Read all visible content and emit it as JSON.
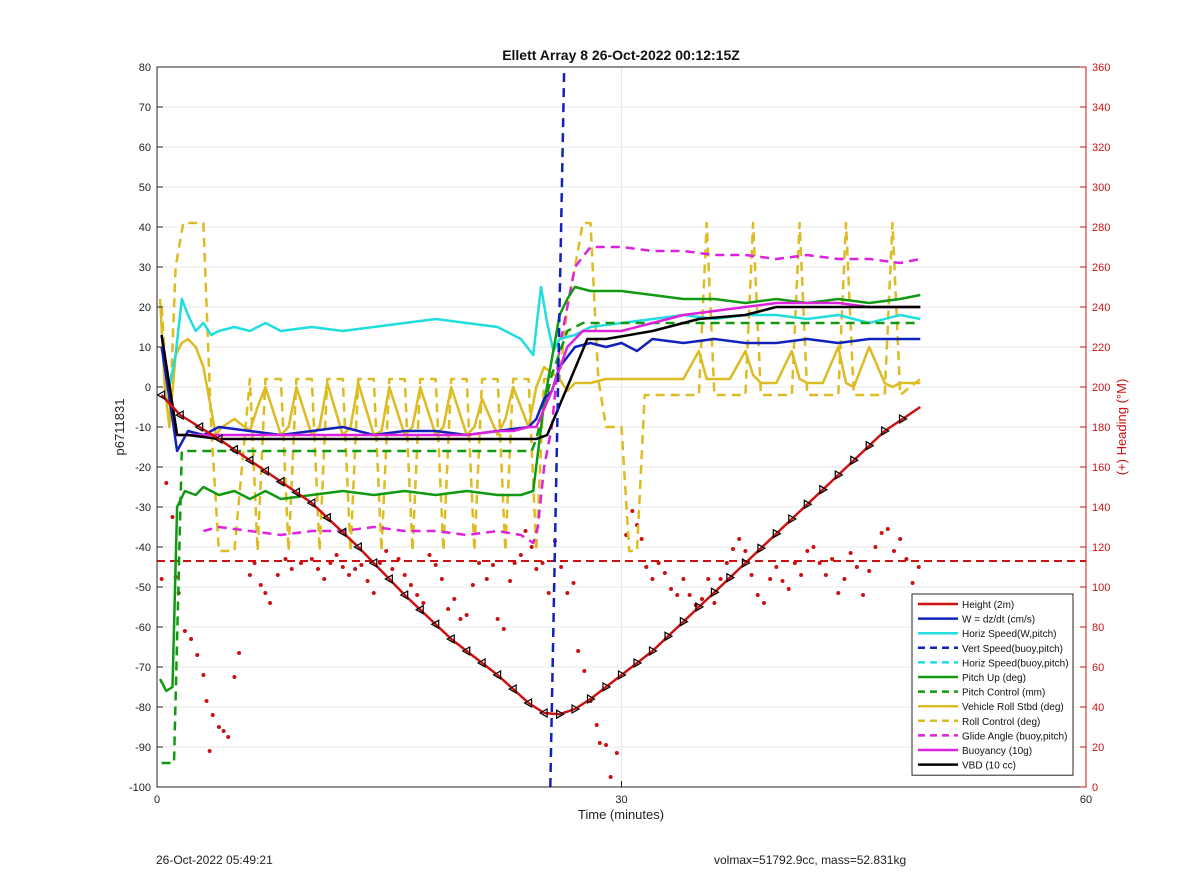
{
  "chart_data": {
    "type": "line",
    "title": "Ellett Array 8 26-Oct-2022 00:12:15Z",
    "xlabel": "Time (minutes)",
    "ylabel": "p6711831",
    "y2label": "(+) Heading (°M)",
    "xlim": [
      0,
      60
    ],
    "ylim": [
      -100,
      80
    ],
    "y2lim": [
      0,
      360
    ],
    "xticks": [
      "0",
      "30",
      "60"
    ],
    "yticks": [
      "-100",
      "-90",
      "-80",
      "-70",
      "-60",
      "-50",
      "-40",
      "-30",
      "-20",
      "-10",
      "0",
      "10",
      "20",
      "30",
      "40",
      "50",
      "60",
      "70",
      "80"
    ],
    "y2ticks": [
      "0",
      "20",
      "40",
      "60",
      "80",
      "100",
      "120",
      "140",
      "160",
      "180",
      "200",
      "220",
      "240",
      "260",
      "280",
      "300",
      "320",
      "340",
      "360"
    ],
    "grid": true,
    "legend_position": "bottom-right",
    "colors": {
      "red": "#cc1111",
      "blue": "#1122bb",
      "cyan": "#22dddd",
      "green": "#119911",
      "yellow": "#ddbb22",
      "magenta": "#dd22dd",
      "black": "#000000",
      "axis_right": "#cc1111"
    },
    "series": [
      {
        "name": "Height (2m)",
        "color": "#cc1111",
        "style": "solid",
        "marker": "triangle",
        "x": [
          0.3,
          1.5,
          4,
          7,
          10,
          13,
          16,
          19,
          22,
          24,
          25,
          26,
          27,
          28,
          30,
          32,
          35,
          38,
          41,
          44,
          47,
          49.3
        ],
        "y": [
          -2,
          -7,
          -13,
          -21,
          -29,
          -40,
          -52,
          -63,
          -72,
          -79,
          -81.5,
          -81.8,
          -80.5,
          -78,
          -72,
          -66,
          -55,
          -44,
          -33,
          -22,
          -11,
          -5
        ]
      },
      {
        "name": "W = dz/dt (cm/s)",
        "color": "#1122bb",
        "style": "solid",
        "x": [
          0.3,
          1.0,
          1.3,
          2,
          3,
          4,
          6,
          8,
          10,
          12,
          14,
          16,
          18,
          20,
          22,
          24,
          24.5,
          25,
          25.5,
          26,
          27,
          28,
          29,
          30,
          31,
          32,
          34,
          36,
          38,
          40,
          42,
          44,
          46,
          48,
          49.3
        ],
        "y": [
          10,
          -8,
          -16,
          -11,
          -12,
          -10,
          -11,
          -12,
          -11,
          -10,
          -12,
          -11,
          -11,
          -12,
          -11,
          -10,
          -8,
          -3,
          -1,
          5,
          10,
          11,
          10,
          11,
          9,
          12,
          11,
          12,
          11,
          11,
          12,
          11,
          12,
          12,
          12
        ]
      },
      {
        "name": "Horiz Speed(W,pitch)",
        "color": "#22dddd",
        "style": "solid",
        "x": [
          0.8,
          1.2,
          1.6,
          2,
          2.5,
          3,
          3.5,
          4,
          5,
          6,
          7,
          8,
          10,
          12,
          14,
          16,
          18,
          20,
          22,
          23.5,
          24.3,
          24.8,
          25.2,
          25.6,
          26,
          27,
          28,
          30,
          32,
          34,
          36,
          38,
          40,
          42,
          44,
          46,
          48,
          49.3
        ],
        "y": [
          0,
          8,
          22,
          18,
          14,
          16,
          13,
          14,
          15,
          14,
          16,
          14,
          15,
          14,
          15,
          16,
          17,
          16,
          15,
          12,
          8,
          25,
          16,
          9,
          12,
          13,
          15,
          16,
          17,
          18,
          17,
          18,
          18,
          17,
          18,
          16,
          18,
          17
        ]
      },
      {
        "name": "Vert Speed(buoy,pitch)",
        "color": "#1122bb",
        "style": "dashed",
        "x": [
          25.4,
          26.3
        ],
        "y": [
          -100,
          80
        ]
      },
      {
        "name": "Horiz Speed(buoy,pitch)",
        "color": "#22dddd",
        "style": "dashed",
        "x": [],
        "y": []
      },
      {
        "name": "Pitch Up (deg)",
        "color": "#119911",
        "style": "solid",
        "x": [
          0.2,
          0.6,
          1.0,
          1.3,
          1.8,
          2.5,
          3,
          4,
          5,
          6,
          7,
          8,
          10,
          12,
          14,
          16,
          18,
          20,
          22,
          23.5,
          24.3,
          25,
          26,
          26.5,
          27,
          28,
          30,
          32,
          34,
          36,
          38,
          40,
          42,
          44,
          46,
          48,
          49.3
        ],
        "y": [
          -73,
          -76,
          -75,
          -30,
          -26,
          -27,
          -25,
          -27,
          -26,
          -28,
          -26,
          -28,
          -27,
          -26,
          -27,
          -26,
          -27,
          -26,
          -27,
          -27,
          -26,
          -4,
          18,
          22,
          25,
          24,
          24,
          23,
          22,
          22,
          21,
          22,
          21,
          22,
          21,
          22,
          23
        ]
      },
      {
        "name": "Pitch Control (mm)",
        "color": "#119911",
        "style": "dashed",
        "x": [
          0.3,
          1.1,
          1.6,
          24.2,
          24.5,
          25.5,
          26.5,
          27.5,
          49.3
        ],
        "y": [
          -94,
          -94,
          -16,
          -16,
          -13,
          3,
          14,
          16,
          16
        ]
      },
      {
        "name": "Vehicle Roll Stbd (deg)",
        "color": "#ddbb22",
        "style": "solid",
        "x": [
          0.2,
          0.5,
          0.8,
          1.2,
          1.6,
          2,
          2.5,
          3,
          3.8,
          4.2,
          5,
          6,
          6.5,
          7,
          8,
          8.5,
          9,
          10,
          10.5,
          11,
          12,
          12.5,
          13,
          14,
          14.5,
          15,
          16,
          16.5,
          17,
          18,
          18.5,
          19,
          20,
          20.5,
          21,
          22,
          22.5,
          23,
          24,
          24.5,
          25,
          26,
          26.5,
          27,
          28,
          29,
          30,
          32,
          34,
          35,
          35.5,
          36,
          37,
          38,
          38.5,
          39,
          40,
          41,
          41.5,
          42,
          43,
          44,
          44.5,
          45,
          46,
          47,
          47.5,
          48,
          49.3
        ],
        "y": [
          22,
          0,
          -10,
          8,
          11,
          12,
          10,
          5,
          -12,
          -10,
          -8,
          -11,
          -5,
          0,
          -12,
          -10,
          0,
          -12,
          -10,
          1,
          -12,
          -10,
          1,
          -12,
          -11,
          0,
          -12,
          -10,
          0,
          -12,
          -10,
          0,
          -12,
          -10,
          -3,
          -12,
          -8,
          0,
          -10,
          0,
          5,
          2,
          -1,
          1,
          1,
          2,
          2,
          2,
          2,
          9,
          2,
          2,
          2,
          9,
          3,
          1,
          1,
          9,
          2,
          1,
          1,
          10,
          1,
          0,
          10,
          1,
          0,
          1,
          1
        ]
      },
      {
        "name": "Roll Control (deg)",
        "color": "#ddbb22",
        "style": "dashed",
        "x": [
          0.3,
          0.8,
          1.2,
          1.7,
          2,
          2.5,
          3,
          3.5,
          4,
          5,
          6,
          6.5,
          7,
          8,
          8.5,
          9,
          10,
          10.5,
          11,
          12,
          12.5,
          13,
          14,
          14.5,
          15,
          16,
          16.5,
          17,
          18,
          18.5,
          19,
          20,
          20.5,
          21,
          22,
          22.5,
          23,
          24,
          24.5,
          25,
          26,
          26.5,
          27,
          27.5,
          28,
          28.5,
          29,
          30,
          30.5,
          31,
          31.5,
          35,
          35.5,
          36,
          37,
          38,
          38.5,
          39,
          40,
          41,
          41.5,
          42,
          43,
          44,
          44.5,
          45,
          46,
          47,
          47.5,
          48,
          49.3
        ],
        "y": [
          20,
          -10,
          30,
          41,
          41,
          41,
          41,
          -10,
          -41,
          -41,
          2,
          -41,
          2,
          2,
          -41,
          2,
          2,
          -41,
          2,
          2,
          -41,
          2,
          2,
          -41,
          2,
          2,
          -41,
          2,
          2,
          -41,
          2,
          2,
          -41,
          2,
          2,
          -41,
          2,
          2,
          -41,
          2,
          2,
          20,
          30,
          41,
          41,
          2,
          -10,
          -10,
          -41,
          -41,
          -2,
          -2,
          41,
          -2,
          -2,
          -2,
          41,
          -2,
          -2,
          -2,
          41,
          -2,
          -2,
          -2,
          41,
          -2,
          -2,
          -2,
          41,
          -2,
          2
        ]
      },
      {
        "name": "Glide Angle (buoy,pitch)",
        "color": "#dd22dd",
        "style": "dashed",
        "x": [
          3,
          4,
          6,
          8,
          10,
          12,
          14,
          16,
          18,
          20,
          22,
          23.5,
          24.3,
          24.6,
          25,
          25.5,
          26,
          27,
          28,
          30,
          32,
          34,
          36,
          38,
          40,
          42,
          44,
          46,
          48,
          49.3
        ],
        "y": [
          -36,
          -35,
          -36,
          -37,
          -36,
          -36,
          -35,
          -36,
          -36,
          -37,
          -36,
          -37,
          -39,
          -35,
          -20,
          -10,
          10,
          30,
          35,
          35,
          34,
          34,
          33,
          33,
          32,
          33,
          32,
          32,
          31,
          32
        ]
      },
      {
        "name": "Buoyancy (10g)",
        "color": "#dd22dd",
        "style": "solid",
        "x": [
          0.3,
          1.3,
          2,
          4,
          8,
          12,
          16,
          20,
          22,
          23,
          24,
          24.5,
          25.5,
          26.5,
          27.5,
          30,
          32,
          34,
          36,
          38,
          40,
          42,
          44,
          46,
          48,
          49.3
        ],
        "y": [
          13,
          -12,
          -12,
          -12,
          -12,
          -12,
          -12,
          -12,
          -11,
          -11,
          -10,
          -10,
          -1,
          10,
          14,
          14,
          16,
          18,
          19,
          20,
          21,
          21,
          21,
          20,
          20,
          20
        ]
      },
      {
        "name": "VBD (10 cc)",
        "color": "#000000",
        "style": "solid",
        "x": [
          0.3,
          1.3,
          2,
          4,
          8,
          12,
          16,
          20,
          24.5,
          25.2,
          27.8,
          29,
          32,
          35,
          38,
          40,
          43,
          46,
          49.3
        ],
        "y": [
          13,
          -12,
          -12,
          -13,
          -13,
          -13,
          -13,
          -13,
          -13,
          -12,
          12,
          12,
          14,
          17,
          18,
          20,
          20,
          20,
          20
        ]
      }
    ],
    "heading_points": [
      [
        0.3,
        104
      ],
      [
        0.6,
        152
      ],
      [
        1,
        135
      ],
      [
        1.2,
        105
      ],
      [
        1.4,
        97
      ],
      [
        1.8,
        78
      ],
      [
        2.2,
        74
      ],
      [
        2.6,
        66
      ],
      [
        3,
        56
      ],
      [
        3.2,
        43
      ],
      [
        3.4,
        18
      ],
      [
        3.6,
        36
      ],
      [
        4,
        30
      ],
      [
        4.3,
        28
      ],
      [
        4.6,
        25
      ],
      [
        5,
        55
      ],
      [
        5.3,
        67
      ],
      [
        6,
        106
      ],
      [
        6.3,
        112
      ],
      [
        6.7,
        101
      ],
      [
        7,
        97
      ],
      [
        7.3,
        92
      ],
      [
        7.8,
        106
      ],
      [
        8.3,
        114
      ],
      [
        8.7,
        109
      ],
      [
        9.3,
        112
      ],
      [
        10,
        114
      ],
      [
        10.4,
        109
      ],
      [
        10.8,
        104
      ],
      [
        11.2,
        112
      ],
      [
        11.6,
        116
      ],
      [
        12,
        110
      ],
      [
        12.4,
        106
      ],
      [
        12.8,
        109
      ],
      [
        13.2,
        111
      ],
      [
        13.6,
        103
      ],
      [
        14,
        97
      ],
      [
        14.4,
        112
      ],
      [
        14.8,
        118
      ],
      [
        15.2,
        109
      ],
      [
        15.6,
        114
      ],
      [
        16,
        106
      ],
      [
        16.4,
        101
      ],
      [
        16.8,
        96
      ],
      [
        17.2,
        92
      ],
      [
        17.6,
        116
      ],
      [
        18,
        111
      ],
      [
        18.4,
        104
      ],
      [
        18.8,
        89
      ],
      [
        19.2,
        94
      ],
      [
        19.6,
        84
      ],
      [
        20,
        86
      ],
      [
        20.4,
        101
      ],
      [
        20.8,
        112
      ],
      [
        21.3,
        104
      ],
      [
        21.7,
        111
      ],
      [
        22,
        84
      ],
      [
        22.4,
        79
      ],
      [
        22.8,
        103
      ],
      [
        23.1,
        112
      ],
      [
        23.5,
        116
      ],
      [
        23.8,
        128
      ],
      [
        24.2,
        120
      ],
      [
        24.5,
        109
      ],
      [
        24.9,
        112
      ],
      [
        25.3,
        97
      ],
      [
        25.7,
        123
      ],
      [
        26.1,
        110
      ],
      [
        26.5,
        97
      ],
      [
        26.9,
        102
      ],
      [
        27.2,
        68
      ],
      [
        27.6,
        58
      ],
      [
        28,
        43
      ],
      [
        28.4,
        31
      ],
      [
        28.6,
        22
      ],
      [
        29,
        21
      ],
      [
        29.3,
        5
      ],
      [
        29.7,
        17
      ],
      [
        30.3,
        126
      ],
      [
        30.7,
        138
      ],
      [
        31,
        131
      ],
      [
        31.3,
        124
      ],
      [
        31.6,
        110
      ],
      [
        32,
        104
      ],
      [
        32.4,
        112
      ],
      [
        32.8,
        107
      ],
      [
        33.2,
        99
      ],
      [
        33.6,
        96
      ],
      [
        34,
        104
      ],
      [
        34.4,
        96
      ],
      [
        34.8,
        91
      ],
      [
        35.2,
        94
      ],
      [
        35.6,
        104
      ],
      [
        36,
        92
      ],
      [
        36.4,
        104
      ],
      [
        36.8,
        112
      ],
      [
        37.2,
        119
      ],
      [
        37.6,
        124
      ],
      [
        38,
        118
      ],
      [
        38.4,
        106
      ],
      [
        38.8,
        96
      ],
      [
        39.2,
        92
      ],
      [
        39.6,
        104
      ],
      [
        40,
        110
      ],
      [
        40.4,
        103
      ],
      [
        40.8,
        99
      ],
      [
        41.2,
        112
      ],
      [
        41.6,
        106
      ],
      [
        42,
        118
      ],
      [
        42.4,
        120
      ],
      [
        42.8,
        112
      ],
      [
        43.2,
        106
      ],
      [
        43.6,
        114
      ],
      [
        44,
        97
      ],
      [
        44.4,
        104
      ],
      [
        44.8,
        117
      ],
      [
        45.2,
        110
      ],
      [
        45.6,
        96
      ],
      [
        46,
        108
      ],
      [
        46.4,
        120
      ],
      [
        46.8,
        127
      ],
      [
        47.2,
        129
      ],
      [
        47.6,
        118
      ],
      [
        48,
        124
      ],
      [
        48.4,
        114
      ],
      [
        48.8,
        102
      ],
      [
        49.2,
        110
      ]
    ],
    "heading_reference": 113
  },
  "footer": {
    "left": "26-Oct-2022 05:49:21",
    "right": "volmax=51792.9cc, mass=52.831kg"
  }
}
